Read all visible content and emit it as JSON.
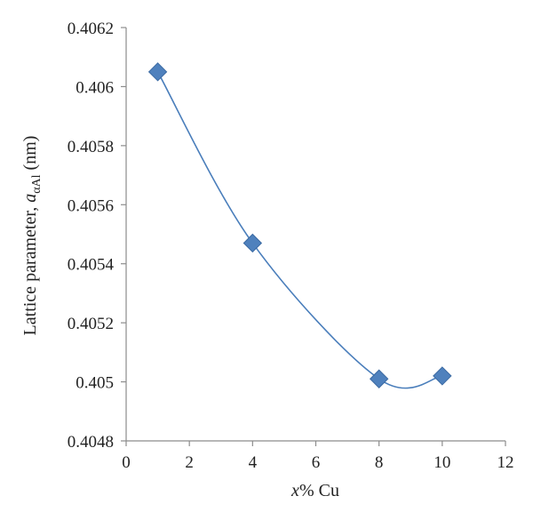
{
  "chart_data": {
    "type": "scatter",
    "title": "",
    "xlabel": {
      "italic": "x",
      "rest": "% Cu"
    },
    "ylabel": {
      "prefix": "Lattice parameter, ",
      "symbol": "a",
      "subscript": "αAl",
      "suffix": " (nm)"
    },
    "xlim": [
      0,
      12
    ],
    "ylim": [
      0.4048,
      0.4062
    ],
    "x_ticks": [
      "0",
      "2",
      "4",
      "6",
      "8",
      "10",
      "12"
    ],
    "y_ticks": [
      "0.4048",
      "0.405",
      "0.4052",
      "0.4054",
      "0.4056",
      "0.4058",
      "0.406",
      "0.4062"
    ],
    "grid": false,
    "smoothed_line": true,
    "marker": "diamond",
    "series": [
      {
        "x": [
          1,
          4,
          8,
          10
        ],
        "y": [
          0.40605,
          0.40547,
          0.40501,
          0.40502
        ],
        "color": "#4a7ebb",
        "marker_color": "#4f81bd"
      }
    ]
  }
}
